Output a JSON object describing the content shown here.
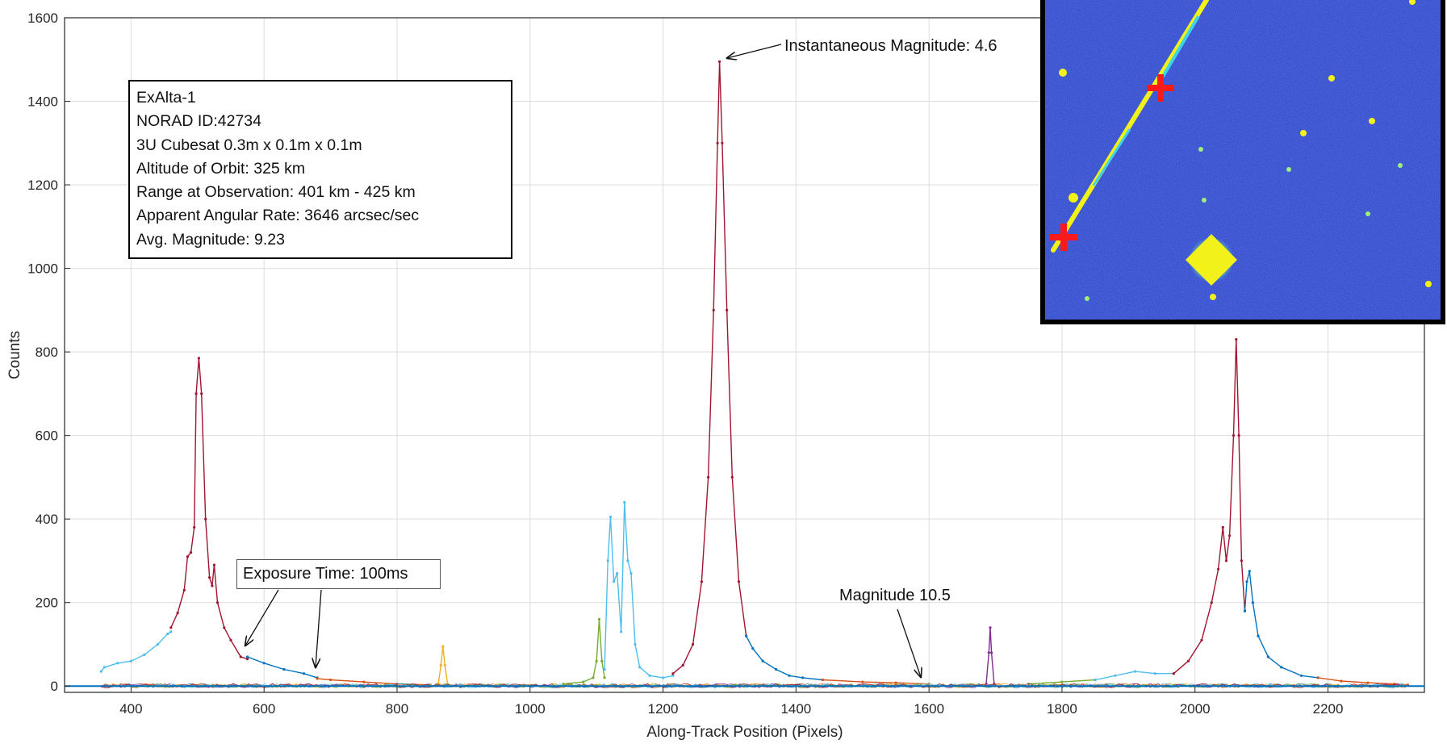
{
  "chart_data": {
    "type": "line",
    "xlabel": "Along-Track Position (Pixels)",
    "ylabel": "Counts",
    "xlim": [
      300,
      2345
    ],
    "ylim": [
      -15,
      1600
    ],
    "xticks": [
      400,
      600,
      800,
      1000,
      1200,
      1400,
      1600,
      1800,
      2000,
      2200
    ],
    "yticks": [
      0,
      200,
      400,
      600,
      800,
      1000,
      1200,
      1400,
      1600
    ],
    "grid": true,
    "series": [
      {
        "color": "#4dbeee",
        "points": [
          [
            355,
            35
          ],
          [
            360,
            45
          ],
          [
            380,
            55
          ],
          [
            400,
            60
          ],
          [
            420,
            75
          ],
          [
            440,
            100
          ],
          [
            455,
            125
          ],
          [
            460,
            130
          ]
        ]
      },
      {
        "color": "#a2142f",
        "points": [
          [
            460,
            140
          ],
          [
            470,
            175
          ],
          [
            480,
            230
          ],
          [
            485,
            310
          ],
          [
            490,
            320
          ],
          [
            495,
            380
          ],
          [
            498,
            700
          ],
          [
            502,
            785
          ],
          [
            506,
            700
          ],
          [
            512,
            400
          ],
          [
            518,
            260
          ],
          [
            522,
            240
          ],
          [
            525,
            290
          ],
          [
            530,
            200
          ],
          [
            540,
            140
          ],
          [
            550,
            110
          ],
          [
            565,
            70
          ],
          [
            575,
            65
          ]
        ]
      },
      {
        "color": "#0072bd",
        "points": [
          [
            575,
            70
          ],
          [
            600,
            55
          ],
          [
            630,
            40
          ],
          [
            660,
            30
          ],
          [
            680,
            20
          ]
        ]
      },
      {
        "color": "#d95319",
        "points": [
          [
            680,
            18
          ],
          [
            700,
            15
          ],
          [
            750,
            10
          ],
          [
            800,
            5
          ],
          [
            850,
            3
          ]
        ]
      },
      {
        "color": "#edb120",
        "points": [
          [
            862,
            5
          ],
          [
            866,
            50
          ],
          [
            869,
            95
          ],
          [
            872,
            50
          ],
          [
            876,
            5
          ]
        ]
      },
      {
        "color": "#77ac30",
        "points": [
          [
            1050,
            5
          ],
          [
            1080,
            10
          ],
          [
            1095,
            20
          ],
          [
            1100,
            60
          ],
          [
            1104,
            160
          ],
          [
            1108,
            60
          ],
          [
            1112,
            20
          ]
        ]
      },
      {
        "color": "#4dbeee",
        "points": [
          [
            1112,
            40
          ],
          [
            1117,
            300
          ],
          [
            1121,
            405
          ],
          [
            1126,
            250
          ],
          [
            1131,
            270
          ],
          [
            1137,
            130
          ],
          [
            1142,
            440
          ],
          [
            1147,
            300
          ],
          [
            1152,
            270
          ],
          [
            1158,
            100
          ],
          [
            1165,
            45
          ],
          [
            1180,
            25
          ],
          [
            1200,
            20
          ],
          [
            1215,
            25
          ]
        ]
      },
      {
        "color": "#a2142f",
        "points": [
          [
            1215,
            30
          ],
          [
            1230,
            50
          ],
          [
            1245,
            100
          ],
          [
            1258,
            250
          ],
          [
            1268,
            500
          ],
          [
            1276,
            900
          ],
          [
            1282,
            1300
          ],
          [
            1285,
            1495
          ],
          [
            1289,
            1300
          ],
          [
            1296,
            900
          ],
          [
            1304,
            500
          ],
          [
            1314,
            250
          ],
          [
            1325,
            120
          ]
        ]
      },
      {
        "color": "#0072bd",
        "points": [
          [
            1325,
            120
          ],
          [
            1335,
            90
          ],
          [
            1350,
            60
          ],
          [
            1370,
            40
          ],
          [
            1390,
            25
          ],
          [
            1410,
            20
          ],
          [
            1440,
            15
          ]
        ]
      },
      {
        "color": "#d95319",
        "points": [
          [
            1440,
            15
          ],
          [
            1500,
            10
          ],
          [
            1550,
            8
          ],
          [
            1600,
            5
          ]
        ]
      },
      {
        "color": "#7e2f8e",
        "points": [
          [
            1686,
            5
          ],
          [
            1690,
            80
          ],
          [
            1692,
            140
          ],
          [
            1694,
            80
          ],
          [
            1698,
            5
          ]
        ]
      },
      {
        "color": "#77ac30",
        "points": [
          [
            1750,
            5
          ],
          [
            1800,
            10
          ],
          [
            1850,
            15
          ]
        ]
      },
      {
        "color": "#4dbeee",
        "points": [
          [
            1850,
            15
          ],
          [
            1880,
            25
          ],
          [
            1910,
            35
          ],
          [
            1940,
            30
          ],
          [
            1968,
            30
          ]
        ]
      },
      {
        "color": "#a2142f",
        "points": [
          [
            1968,
            30
          ],
          [
            1990,
            60
          ],
          [
            2010,
            110
          ],
          [
            2025,
            200
          ],
          [
            2035,
            280
          ],
          [
            2042,
            380
          ],
          [
            2047,
            300
          ],
          [
            2052,
            360
          ],
          [
            2058,
            600
          ],
          [
            2062,
            830
          ],
          [
            2066,
            600
          ],
          [
            2070,
            300
          ],
          [
            2075,
            180
          ]
        ]
      },
      {
        "color": "#0072bd",
        "points": [
          [
            2075,
            180
          ],
          [
            2078,
            250
          ],
          [
            2082,
            275
          ],
          [
            2087,
            200
          ],
          [
            2095,
            120
          ],
          [
            2110,
            70
          ],
          [
            2130,
            45
          ],
          [
            2160,
            25
          ],
          [
            2185,
            20
          ]
        ]
      },
      {
        "color": "#d95319",
        "points": [
          [
            2185,
            20
          ],
          [
            2220,
            12
          ],
          [
            2260,
            8
          ],
          [
            2300,
            5
          ],
          [
            2320,
            3
          ]
        ]
      }
    ],
    "annotations": {
      "peak": "Instantaneous Magnitude: 4.6",
      "faint": "Magnitude 10.5",
      "exposure": "Exposure Time: 100ms"
    },
    "info_box": [
      "ExAlta-1",
      "NORAD ID:42734",
      "3U Cubesat 0.3m x 0.1m x 0.1m",
      "Altitude of Orbit: 325 km",
      "Range at Observation: 401 km - 425 km",
      "Apparent Angular Rate: 3646 arcsec/sec",
      "Avg. Magnitude: 9.23"
    ]
  },
  "inset": {
    "background_color": "#2b3fc4",
    "streak_color": "#f2f21a",
    "marker_color": "#ff1a1a"
  }
}
